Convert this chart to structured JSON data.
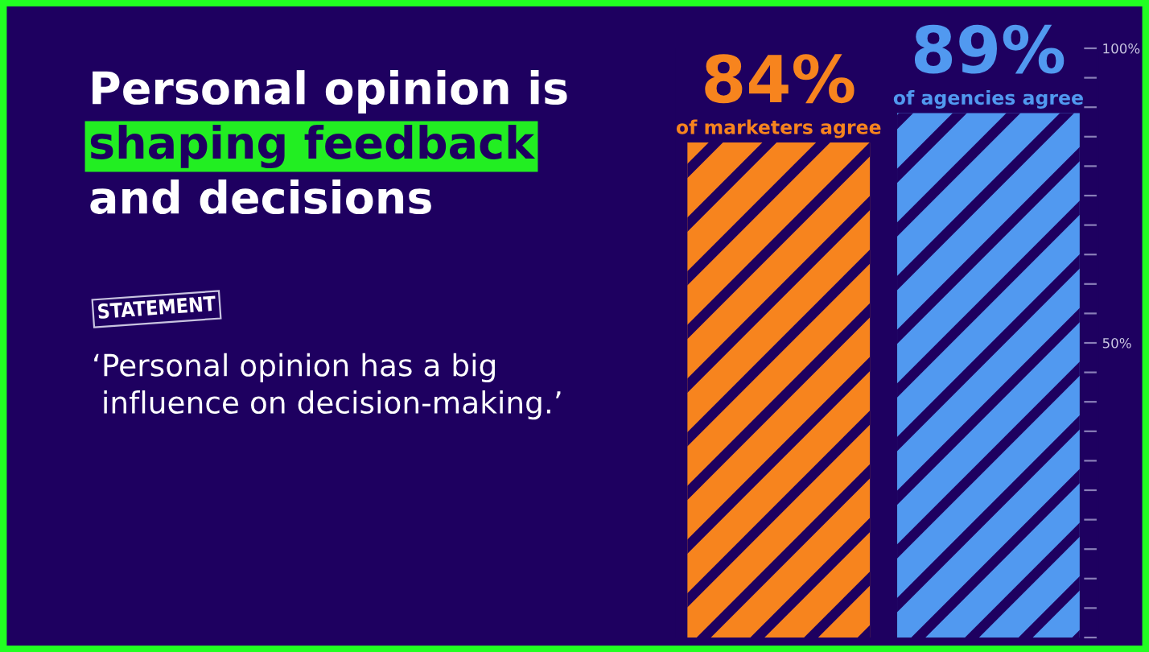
{
  "chart_data": {
    "type": "bar",
    "title": "Personal opinion is\nshaping feedback\nand decisions",
    "subtitle": "‘Personal opinion has a big\n influence on decision-making.’",
    "annotations": [
      "STATEMENT",
      "of marketers agree",
      "of agencies agree"
    ],
    "categories": [
      null,
      null
    ],
    "values": [
      84,
      89
    ],
    "colors": [
      "#f7841e",
      "#5199f0"
    ],
    "value_labels": [
      "84%",
      "89%"
    ],
    "ylim": [
      0,
      100
    ],
    "yticks": [
      {
        "value": 0,
        "label": null
      },
      {
        "value": 5,
        "label": null
      },
      {
        "value": 10,
        "label": null
      },
      {
        "value": 15,
        "label": null
      },
      {
        "value": 20,
        "label": null
      },
      {
        "value": 25,
        "label": null
      },
      {
        "value": 30,
        "label": null
      },
      {
        "value": 35,
        "label": null
      },
      {
        "value": 40,
        "label": null
      },
      {
        "value": 45,
        "label": null
      },
      {
        "value": 50,
        "label": "50%"
      },
      {
        "value": 55,
        "label": null
      },
      {
        "value": 60,
        "label": null
      },
      {
        "value": 65,
        "label": null
      },
      {
        "value": 70,
        "label": null
      },
      {
        "value": 75,
        "label": null
      },
      {
        "value": 80,
        "label": null
      },
      {
        "value": 85,
        "label": null
      },
      {
        "value": 90,
        "label": null
      },
      {
        "value": 95,
        "label": null
      },
      {
        "value": 100,
        "label": "100%"
      }
    ],
    "tick_labels": "y",
    "grid": false,
    "legend": false
  }
}
